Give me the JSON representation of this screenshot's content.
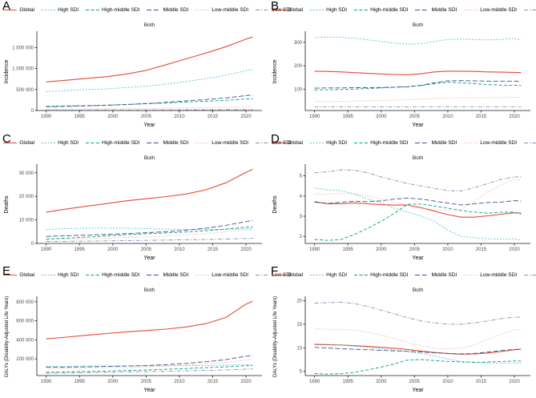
{
  "figure": {
    "background": "#ffffff",
    "subtitle": "Both",
    "xlabel": "Year",
    "axis_color": "#1a1a1a",
    "tick_text_color": "#4d4d4d",
    "series_styles": [
      {
        "name": "Global",
        "color": "#E64B35",
        "dash": "solid"
      },
      {
        "name": "High SDI",
        "color": "#4DBBD5",
        "dash": "dotted"
      },
      {
        "name": "High-middle SDI",
        "color": "#00A087",
        "dash": "dashed"
      },
      {
        "name": "Middle SDI",
        "color": "#3C5488",
        "dash": "longdash"
      },
      {
        "name": "Low-middle SDI",
        "color": "#F39B7F",
        "dash": "finedot"
      },
      {
        "name": "Low SDI",
        "color": "#8491B4",
        "dash": "dashdot"
      }
    ]
  },
  "chart_data": [
    {
      "panel": "A",
      "type": "line",
      "title": "Both",
      "xlabel": "Year",
      "ylabel": "Incidence",
      "xlim": [
        1988.6,
        2022.4
      ],
      "ylim": [
        0,
        1850000
      ],
      "xticks": [
        1990,
        1995,
        2000,
        2005,
        2010,
        2015,
        2020
      ],
      "yticks": [
        0,
        500000,
        1000000,
        1500000
      ],
      "ytick_labels": [
        "0",
        "500 000",
        "1 000 000",
        "1 500 000"
      ],
      "x": [
        1990,
        1993,
        1996,
        1999,
        2002,
        2005,
        2008,
        2011,
        2014,
        2017,
        2020,
        2021
      ],
      "series": [
        {
          "name": "Global",
          "values": [
            680000,
            720000,
            765000,
            805000,
            865000,
            955000,
            1090000,
            1230000,
            1370000,
            1520000,
            1700000,
            1750000
          ]
        },
        {
          "name": "High SDI",
          "values": [
            450000,
            475000,
            500000,
            515000,
            545000,
            580000,
            630000,
            690000,
            760000,
            840000,
            950000,
            970000
          ]
        },
        {
          "name": "High-middle SDI",
          "values": [
            100000,
            109000,
            118000,
            128000,
            143000,
            160000,
            180000,
            202000,
            222000,
            243000,
            272000,
            280000
          ]
        },
        {
          "name": "Middle SDI",
          "values": [
            90000,
            99000,
            110000,
            123000,
            143000,
            165000,
            195000,
            228000,
            262000,
            300000,
            355000,
            370000
          ]
        },
        {
          "name": "Low-middle SDI",
          "values": [
            30000,
            33000,
            36000,
            40000,
            45000,
            50000,
            56000,
            62000,
            69000,
            77000,
            87000,
            90000
          ]
        },
        {
          "name": "Low SDI",
          "values": [
            10000,
            10800,
            11600,
            12500,
            13300,
            14200,
            15300,
            16400,
            17600,
            18800,
            20300,
            21000
          ]
        }
      ]
    },
    {
      "panel": "B",
      "type": "line",
      "title": "Both",
      "xlabel": "Year",
      "ylabel": "Incidence",
      "xlim": [
        1988.6,
        2022.4
      ],
      "ylim": [
        10,
        340
      ],
      "xticks": [
        1990,
        1995,
        2000,
        2005,
        2010,
        2015,
        2020
      ],
      "yticks": [
        100,
        200,
        300
      ],
      "ytick_labels": [
        "100",
        "200",
        "300"
      ],
      "x": [
        1990,
        1992,
        1994,
        1996,
        1998,
        2000,
        2002,
        2004,
        2006,
        2008,
        2010,
        2012,
        2014,
        2016,
        2018,
        2020,
        2021
      ],
      "series": [
        {
          "name": "Global",
          "values": [
            177,
            176,
            174,
            171,
            168,
            165,
            163,
            162,
            166,
            174,
            177,
            177,
            176,
            174,
            173,
            172,
            171
          ]
        },
        {
          "name": "High SDI",
          "values": [
            320,
            322,
            321,
            317,
            310,
            304,
            296,
            292,
            294,
            303,
            312,
            313,
            311,
            310,
            312,
            316,
            310
          ]
        },
        {
          "name": "High-middle SDI",
          "values": [
            97,
            98,
            99,
            101,
            104,
            106,
            109,
            111,
            116,
            124,
            130,
            128,
            124,
            120,
            118,
            117,
            116
          ]
        },
        {
          "name": "Middle SDI",
          "values": [
            105,
            106,
            106,
            107,
            107,
            108,
            109,
            111,
            117,
            128,
            136,
            137,
            136,
            135,
            135,
            135,
            134
          ]
        },
        {
          "name": "Low-middle SDI",
          "values": [
            48,
            48,
            49,
            50,
            51,
            52,
            54,
            56,
            58,
            61,
            63,
            64,
            64,
            65,
            65,
            66,
            66
          ]
        },
        {
          "name": "Low SDI",
          "values": [
            25,
            25,
            25,
            25,
            25,
            25,
            25,
            25,
            25,
            26,
            26,
            26,
            26,
            26,
            26,
            26,
            26
          ]
        }
      ]
    },
    {
      "panel": "C",
      "type": "line",
      "title": "Both",
      "xlabel": "Year",
      "ylabel": "Deaths",
      "xlim": [
        1988.6,
        2022.4
      ],
      "ylim": [
        0,
        33000
      ],
      "xticks": [
        1990,
        1995,
        2000,
        2005,
        2010,
        2015,
        2020
      ],
      "yticks": [
        0,
        10000,
        20000,
        30000
      ],
      "ytick_labels": [
        "0",
        "10 000",
        "20 000",
        "30 000"
      ],
      "x": [
        1990,
        1993,
        1996,
        1999,
        2002,
        2005,
        2008,
        2011,
        2014,
        2017,
        2020,
        2021
      ],
      "series": [
        {
          "name": "Global",
          "values": [
            13300,
            14600,
            15800,
            16900,
            18100,
            19000,
            19900,
            21000,
            22800,
            25800,
            30200,
            31500
          ]
        },
        {
          "name": "High SDI",
          "values": [
            6000,
            6300,
            6450,
            6500,
            6500,
            6300,
            6100,
            5950,
            5900,
            6000,
            6200,
            6300
          ]
        },
        {
          "name": "High-middle SDI",
          "values": [
            1900,
            2250,
            2700,
            3200,
            3700,
            4100,
            4450,
            4850,
            5400,
            6100,
            6900,
            7000
          ]
        },
        {
          "name": "Middle SDI",
          "values": [
            3000,
            3250,
            3550,
            3850,
            4200,
            4550,
            5000,
            5600,
            6500,
            7700,
            9300,
            9800
          ]
        },
        {
          "name": "Low-middle SDI",
          "values": [
            1600,
            1780,
            2000,
            2250,
            2520,
            2800,
            3150,
            3600,
            4200,
            4900,
            5800,
            6000
          ]
        },
        {
          "name": "Low SDI",
          "values": [
            800,
            890,
            990,
            1090,
            1200,
            1300,
            1420,
            1550,
            1700,
            1880,
            2100,
            2200
          ]
        }
      ]
    },
    {
      "panel": "D",
      "type": "line",
      "title": "Both",
      "xlabel": "Year",
      "ylabel": "Deaths",
      "xlim": [
        1988.6,
        2022.4
      ],
      "ylim": [
        1.65,
        5.5
      ],
      "xticks": [
        1990,
        1995,
        2000,
        2005,
        2010,
        2015,
        2020
      ],
      "yticks": [
        2,
        3,
        4,
        5
      ],
      "ytick_labels": [
        "2",
        "3",
        "4",
        "5"
      ],
      "x": [
        1990,
        1992,
        1994,
        1996,
        1998,
        2000,
        2002,
        2004,
        2006,
        2008,
        2010,
        2012,
        2014,
        2016,
        2018,
        2020,
        2021
      ],
      "series": [
        {
          "name": "Global",
          "values": [
            3.72,
            3.62,
            3.62,
            3.66,
            3.62,
            3.57,
            3.55,
            3.55,
            3.42,
            3.25,
            3.08,
            2.95,
            2.95,
            3.02,
            3.1,
            3.17,
            3.15
          ]
        },
        {
          "name": "High SDI",
          "values": [
            4.4,
            4.3,
            4.27,
            4.1,
            3.85,
            3.67,
            3.4,
            3.2,
            3.0,
            2.75,
            2.3,
            2.0,
            1.93,
            1.88,
            1.87,
            1.88,
            1.8
          ]
        },
        {
          "name": "High-middle SDI",
          "values": [
            1.85,
            1.8,
            1.85,
            2.1,
            2.4,
            2.75,
            3.15,
            3.6,
            3.6,
            3.5,
            3.4,
            3.28,
            3.2,
            3.15,
            3.2,
            3.2,
            3.1
          ]
        },
        {
          "name": "Middle SDI",
          "values": [
            3.7,
            3.63,
            3.7,
            3.74,
            3.72,
            3.76,
            3.85,
            3.9,
            3.85,
            3.75,
            3.65,
            3.55,
            3.62,
            3.68,
            3.7,
            3.77,
            3.75
          ]
        },
        {
          "name": "Low-middle SDI",
          "values": [
            4.1,
            4.1,
            4.15,
            4.1,
            4.0,
            3.85,
            3.7,
            3.55,
            3.4,
            3.32,
            3.3,
            3.32,
            3.75,
            4.2,
            4.55,
            4.82,
            4.78
          ]
        },
        {
          "name": "Low SDI",
          "values": [
            5.15,
            5.2,
            5.3,
            5.28,
            5.15,
            4.95,
            4.78,
            4.62,
            4.5,
            4.38,
            4.27,
            4.25,
            4.42,
            4.62,
            4.82,
            4.95,
            4.95
          ]
        }
      ]
    },
    {
      "panel": "E",
      "type": "line",
      "title": "Both",
      "xlabel": "Year",
      "ylabel": "DALYs (Disability-Adjusted Life Years)",
      "xlim": [
        1988.6,
        2022.4
      ],
      "ylim": [
        25000,
        840000
      ],
      "xticks": [
        1990,
        1995,
        2000,
        2005,
        2010,
        2015,
        2020
      ],
      "yticks": [
        200000,
        400000,
        600000,
        800000
      ],
      "ytick_labels": [
        "200 000",
        "400 000",
        "600 000",
        "800 000"
      ],
      "x": [
        1990,
        1993,
        1996,
        1999,
        2002,
        2005,
        2008,
        2011,
        2014,
        2017,
        2020,
        2021
      ],
      "series": [
        {
          "name": "Global",
          "values": [
            410000,
            428000,
            448000,
            466000,
            484000,
            497000,
            512000,
            535000,
            570000,
            635000,
            775000,
            805000
          ]
        },
        {
          "name": "High SDI",
          "values": [
            122000,
            123000,
            124000,
            125000,
            126000,
            127000,
            128000,
            129000,
            131000,
            134000,
            138000,
            140000
          ]
        },
        {
          "name": "High-middle SDI",
          "values": [
            60000,
            63500,
            67500,
            72000,
            78000,
            84000,
            91000,
            99000,
            108000,
            117000,
            128000,
            130000
          ]
        },
        {
          "name": "Middle SDI",
          "values": [
            112000,
            114000,
            117000,
            121000,
            125000,
            130000,
            140000,
            153000,
            170000,
            192000,
            228000,
            235000
          ]
        },
        {
          "name": "Low-middle SDI",
          "values": [
            98000,
            100000,
            104000,
            108000,
            112000,
            116000,
            124000,
            134000,
            147000,
            163000,
            188000,
            195000
          ]
        },
        {
          "name": "Low SDI",
          "values": [
            50000,
            53000,
            56000,
            59000,
            62500,
            66000,
            70000,
            74500,
            79500,
            85000,
            92000,
            95000
          ]
        }
      ]
    },
    {
      "panel": "F",
      "type": "line",
      "title": "Both",
      "xlabel": "Year",
      "ylabel": "DALYs (Disability-Adjusted Life Years)",
      "xlim": [
        1988.6,
        2022.4
      ],
      "ylim": [
        4.1,
        20.6
      ],
      "xticks": [
        1990,
        1995,
        2000,
        2005,
        2010,
        2015,
        2020
      ],
      "yticks": [
        5,
        10,
        15,
        20
      ],
      "ytick_labels": [
        "5",
        "10",
        "15",
        "20"
      ],
      "x": [
        1990,
        1992,
        1994,
        1996,
        1998,
        2000,
        2002,
        2004,
        2006,
        2008,
        2010,
        2012,
        2014,
        2016,
        2018,
        2020,
        2021
      ],
      "series": [
        {
          "name": "Global",
          "values": [
            10.7,
            10.65,
            10.6,
            10.45,
            10.3,
            10.1,
            9.9,
            9.65,
            9.3,
            9.0,
            8.8,
            8.65,
            8.7,
            8.9,
            9.2,
            9.6,
            9.7
          ]
        },
        {
          "name": "High SDI",
          "values": [
            10.85,
            10.75,
            10.6,
            10.35,
            10.1,
            9.8,
            9.5,
            9.2,
            8.8,
            8.3,
            7.6,
            7.1,
            6.9,
            6.8,
            6.75,
            6.8,
            6.7
          ]
        },
        {
          "name": "High-middle SDI",
          "values": [
            4.5,
            4.4,
            4.5,
            4.8,
            5.3,
            5.9,
            6.6,
            7.4,
            7.5,
            7.3,
            7.1,
            7.0,
            6.9,
            7.0,
            7.1,
            7.2,
            7.2
          ]
        },
        {
          "name": "Middle SDI",
          "values": [
            10.1,
            9.95,
            9.8,
            9.7,
            9.6,
            9.45,
            9.35,
            9.25,
            9.1,
            8.95,
            8.8,
            8.7,
            8.8,
            9.1,
            9.4,
            9.65,
            9.7
          ]
        },
        {
          "name": "Low-middle SDI",
          "values": [
            14.0,
            13.95,
            13.9,
            13.7,
            13.3,
            12.7,
            12.0,
            11.2,
            10.4,
            9.9,
            9.8,
            9.9,
            10.6,
            11.8,
            12.9,
            13.8,
            13.9
          ]
        },
        {
          "name": "Low SDI",
          "values": [
            19.5,
            19.6,
            19.7,
            19.4,
            18.8,
            18.0,
            17.2,
            16.4,
            15.7,
            15.3,
            15.0,
            15.0,
            15.3,
            15.7,
            16.2,
            16.5,
            16.5
          ]
        }
      ]
    }
  ]
}
